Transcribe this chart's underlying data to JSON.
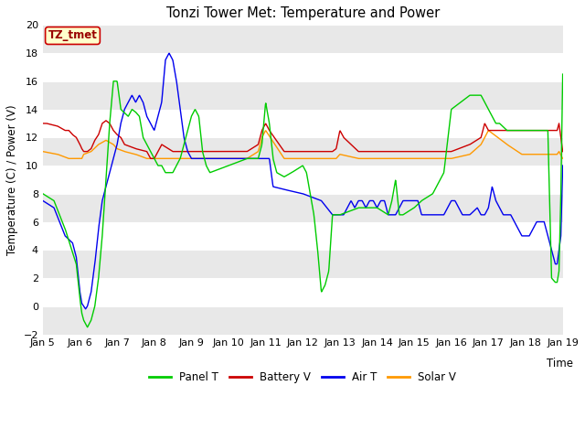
{
  "title": "Tonzi Tower Met: Temperature and Power",
  "xlabel": "Time",
  "ylabel": "Temperature (C) / Power (V)",
  "annotation": "TZ_tmet",
  "ylim": [
    -2,
    20
  ],
  "yticks": [
    -2,
    0,
    2,
    4,
    6,
    8,
    10,
    12,
    14,
    16,
    18,
    20
  ],
  "x_labels": [
    "Jan 5",
    "Jan 6",
    "Jan 7",
    "Jan 8",
    "Jan 9",
    "Jan 10",
    "Jan 11",
    "Jan 12",
    "Jan 13",
    "Jan 14",
    "Jan 15",
    "Jan 16",
    "Jan 17",
    "Jan 18",
    "Jan 19"
  ],
  "colors": {
    "panel_t": "#00cc00",
    "battery_v": "#cc0000",
    "air_t": "#0000ee",
    "solar_v": "#ff9900"
  },
  "background_color": "#ffffff",
  "plot_bg_white": "#ffffff",
  "plot_bg_gray": "#e8e8e8",
  "legend_labels": [
    "Panel T",
    "Battery V",
    "Air T",
    "Solar V"
  ],
  "annotation_bg": "#ffffcc",
  "annotation_border": "#cc0000",
  "annotation_text_color": "#990000"
}
